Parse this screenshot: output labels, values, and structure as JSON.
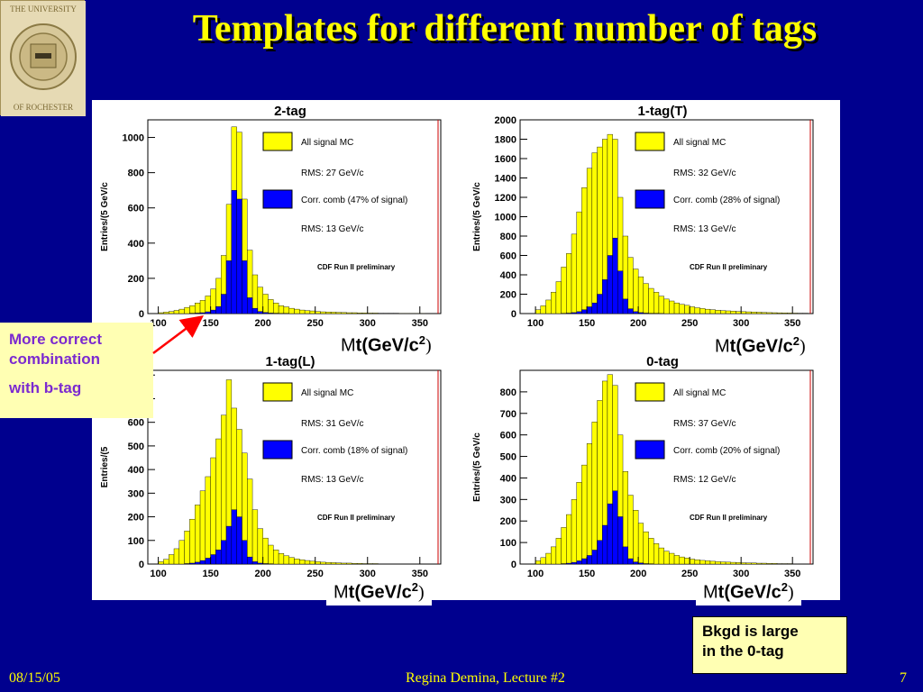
{
  "slide": {
    "title": "Templates for different number of tags",
    "logo_text": "THE UNIVERSITY OF ROCHESTER",
    "footer_date": "08/15/05",
    "footer_center": "Regina Demina, Lecture #2",
    "footer_page": "7"
  },
  "axis_caption": {
    "m": "M",
    "t": "t",
    "unit": "(GeV/c",
    "sup": "2",
    "close": ")"
  },
  "callouts": {
    "more_correct": [
      "More correct",
      "combination",
      "with b-tag"
    ],
    "bkgd": [
      "Bkgd is large",
      "in the 0-tag"
    ]
  },
  "colors": {
    "background": "#00008e",
    "title": "#ffff00",
    "signal": "#ffff00",
    "comb": "#0000ff",
    "arrow": "#ff0000",
    "callout_text": "#7b2ad0",
    "callout_bg": "#ffffb3"
  },
  "chart_data": [
    {
      "type": "bar",
      "title": "2-tag",
      "ylabel": "Entries/(5 GeV/c",
      "xlim": [
        90,
        370
      ],
      "ylim": [
        0,
        1100
      ],
      "xticks": [
        100,
        150,
        200,
        250,
        300,
        350
      ],
      "yticks": [
        0,
        200,
        400,
        600,
        800,
        1000
      ],
      "x": [
        100,
        105,
        110,
        115,
        120,
        125,
        130,
        135,
        140,
        145,
        150,
        155,
        160,
        165,
        170,
        175,
        180,
        185,
        190,
        195,
        200,
        205,
        210,
        215,
        220,
        225,
        230,
        235,
        240,
        245,
        250,
        255,
        260,
        265,
        270,
        275,
        280,
        285,
        290,
        295,
        300,
        305,
        310,
        315,
        320,
        325,
        330,
        335,
        340,
        345,
        350,
        355,
        360,
        365
      ],
      "series": [
        {
          "name": "All signal MC",
          "values": [
            5,
            8,
            12,
            18,
            25,
            35,
            45,
            60,
            75,
            100,
            140,
            200,
            330,
            620,
            1060,
            1030,
            650,
            360,
            220,
            150,
            110,
            80,
            60,
            45,
            38,
            30,
            25,
            20,
            17,
            15,
            12,
            10,
            9,
            8,
            7,
            6,
            5,
            5,
            4,
            4,
            3,
            3,
            2,
            2,
            2,
            2,
            1,
            1,
            1,
            1,
            1,
            0,
            0,
            0
          ]
        },
        {
          "name": "Corr. comb (47% of signal)",
          "values": [
            0,
            0,
            0,
            0,
            0,
            0,
            2,
            3,
            5,
            10,
            20,
            40,
            110,
            300,
            700,
            650,
            300,
            90,
            30,
            12,
            6,
            3,
            2,
            1,
            1,
            0,
            0,
            0,
            0,
            0,
            0,
            0,
            0,
            0,
            0,
            0,
            0,
            0,
            0,
            0,
            0,
            0,
            0,
            0,
            0,
            0,
            0,
            0,
            0,
            0,
            0,
            0,
            0,
            0
          ]
        }
      ],
      "legend": [
        "All signal MC",
        "RMS: 27 GeV/c",
        "Corr. comb (47% of signal)",
        "RMS: 13 GeV/c"
      ],
      "annotation": "CDF Run II preliminary",
      "legend_position": "top-right"
    },
    {
      "type": "bar",
      "title": "1-tag(T)",
      "ylabel": "Entries/(5 GeV/c",
      "xlim": [
        85,
        370
      ],
      "ylim": [
        0,
        2000
      ],
      "xticks": [
        100,
        150,
        200,
        250,
        300,
        350
      ],
      "yticks": [
        0,
        200,
        400,
        600,
        800,
        1000,
        1200,
        1400,
        1600,
        1800,
        2000
      ],
      "x": [
        100,
        105,
        110,
        115,
        120,
        125,
        130,
        135,
        140,
        145,
        150,
        155,
        160,
        165,
        170,
        175,
        180,
        185,
        190,
        195,
        200,
        205,
        210,
        215,
        220,
        225,
        230,
        235,
        240,
        245,
        250,
        255,
        260,
        265,
        270,
        275,
        280,
        285,
        290,
        295,
        300,
        305,
        310,
        315,
        320,
        325,
        330,
        335,
        340,
        345,
        350,
        355,
        360,
        365
      ],
      "series": [
        {
          "name": "All signal MC",
          "values": [
            40,
            80,
            140,
            220,
            330,
            480,
            620,
            820,
            1050,
            1300,
            1500,
            1660,
            1720,
            1800,
            1850,
            1800,
            1200,
            800,
            580,
            460,
            380,
            310,
            260,
            220,
            180,
            150,
            130,
            110,
            95,
            85,
            70,
            60,
            52,
            45,
            40,
            35,
            30,
            28,
            25,
            22,
            20,
            18,
            16,
            14,
            12,
            10,
            9,
            8,
            7,
            6,
            5,
            4,
            4,
            3
          ]
        },
        {
          "name": "Corr. comb (28% of signal)",
          "values": [
            0,
            0,
            0,
            0,
            0,
            2,
            5,
            10,
            20,
            40,
            70,
            110,
            200,
            350,
            600,
            780,
            440,
            150,
            50,
            20,
            10,
            5,
            3,
            2,
            1,
            0,
            0,
            0,
            0,
            0,
            0,
            0,
            0,
            0,
            0,
            0,
            0,
            0,
            0,
            0,
            0,
            0,
            0,
            0,
            0,
            0,
            0,
            0,
            0,
            0,
            0,
            0,
            0,
            0
          ]
        }
      ],
      "legend": [
        "All signal MC",
        "RMS: 32 GeV/c",
        "Corr. comb (28% of signal)",
        "RMS: 13 GeV/c"
      ],
      "annotation": "CDF Run II preliminary",
      "legend_position": "top-right"
    },
    {
      "type": "bar",
      "title": "1-tag(L)",
      "ylabel": "Entries/(5",
      "xlim": [
        90,
        370
      ],
      "ylim": [
        0,
        820
      ],
      "xticks": [
        100,
        150,
        200,
        250,
        300,
        350
      ],
      "yticks": [
        0,
        100,
        200,
        300,
        400,
        500,
        600,
        700,
        800
      ],
      "x": [
        100,
        105,
        110,
        115,
        120,
        125,
        130,
        135,
        140,
        145,
        150,
        155,
        160,
        165,
        170,
        175,
        180,
        185,
        190,
        195,
        200,
        205,
        210,
        215,
        220,
        225,
        230,
        235,
        240,
        245,
        250,
        255,
        260,
        265,
        270,
        275,
        280,
        285,
        290,
        295,
        300,
        305,
        310,
        315,
        320,
        325,
        330,
        335,
        340,
        345,
        350,
        355,
        360,
        365
      ],
      "series": [
        {
          "name": "All signal MC",
          "values": [
            10,
            20,
            40,
            65,
            100,
            140,
            190,
            250,
            310,
            370,
            450,
            530,
            630,
            780,
            660,
            570,
            470,
            360,
            230,
            150,
            110,
            80,
            60,
            45,
            35,
            28,
            22,
            18,
            15,
            12,
            10,
            8,
            7,
            6,
            5,
            4,
            4,
            3,
            3,
            2,
            2,
            2,
            1,
            1,
            1,
            1,
            1,
            0,
            0,
            0,
            0,
            0,
            0,
            0
          ]
        },
        {
          "name": "Corr. comb (18% of signal)",
          "values": [
            0,
            0,
            0,
            0,
            0,
            2,
            4,
            8,
            15,
            25,
            40,
            60,
            100,
            160,
            230,
            200,
            100,
            30,
            10,
            4,
            2,
            1,
            0,
            0,
            0,
            0,
            0,
            0,
            0,
            0,
            0,
            0,
            0,
            0,
            0,
            0,
            0,
            0,
            0,
            0,
            0,
            0,
            0,
            0,
            0,
            0,
            0,
            0,
            0,
            0,
            0,
            0,
            0,
            0
          ]
        }
      ],
      "legend": [
        "All signal MC",
        "RMS: 31 GeV/c",
        "Corr. comb (18% of signal)",
        "RMS: 13 GeV/c"
      ],
      "annotation": "CDF Run II preliminary",
      "legend_position": "top-right"
    },
    {
      "type": "bar",
      "title": "0-tag",
      "ylabel": "Entries/(5 GeV/c",
      "xlim": [
        85,
        370
      ],
      "ylim": [
        0,
        900
      ],
      "xticks": [
        100,
        150,
        200,
        250,
        300,
        350
      ],
      "yticks": [
        0,
        100,
        200,
        300,
        400,
        500,
        600,
        700,
        800
      ],
      "x": [
        100,
        105,
        110,
        115,
        120,
        125,
        130,
        135,
        140,
        145,
        150,
        155,
        160,
        165,
        170,
        175,
        180,
        185,
        190,
        195,
        200,
        205,
        210,
        215,
        220,
        225,
        230,
        235,
        240,
        245,
        250,
        255,
        260,
        265,
        270,
        275,
        280,
        285,
        290,
        295,
        300,
        305,
        310,
        315,
        320,
        325,
        330,
        335,
        340,
        345,
        350,
        355,
        360,
        365
      ],
      "series": [
        {
          "name": "All signal MC",
          "values": [
            15,
            30,
            50,
            80,
            120,
            170,
            230,
            300,
            380,
            460,
            560,
            660,
            760,
            850,
            880,
            830,
            600,
            430,
            320,
            250,
            190,
            150,
            120,
            95,
            75,
            60,
            50,
            40,
            33,
            28,
            23,
            20,
            17,
            15,
            13,
            11,
            10,
            9,
            8,
            7,
            6,
            5,
            5,
            4,
            4,
            3,
            3,
            2,
            2,
            2,
            1,
            1,
            1,
            1
          ]
        },
        {
          "name": "Corr. comb (20% of signal)",
          "values": [
            0,
            0,
            0,
            0,
            0,
            2,
            4,
            8,
            15,
            25,
            40,
            65,
            110,
            180,
            280,
            340,
            220,
            80,
            25,
            10,
            5,
            2,
            1,
            0,
            0,
            0,
            0,
            0,
            0,
            0,
            0,
            0,
            0,
            0,
            0,
            0,
            0,
            0,
            0,
            0,
            0,
            0,
            0,
            0,
            0,
            0,
            0,
            0,
            0,
            0,
            0,
            0,
            0,
            0
          ]
        }
      ],
      "legend": [
        "All signal MC",
        "RMS: 37 GeV/c",
        "Corr. comb (20% of signal)",
        "RMS: 12 GeV/c"
      ],
      "annotation": "CDF Run II preliminary",
      "legend_position": "top-right"
    }
  ]
}
